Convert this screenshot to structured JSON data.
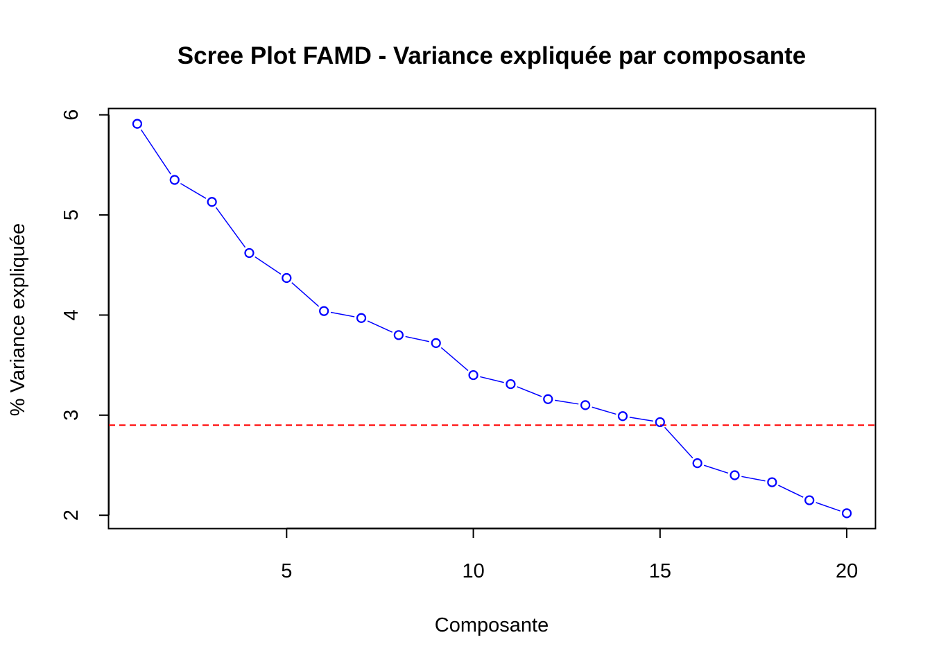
{
  "chart_data": {
    "type": "line",
    "title": "Scree Plot FAMD - Variance expliquée par composante",
    "xlabel": "Composante",
    "ylabel": "% Variance expliquée",
    "x": [
      1,
      2,
      3,
      4,
      5,
      6,
      7,
      8,
      9,
      10,
      11,
      12,
      13,
      14,
      15,
      16,
      17,
      18,
      19,
      20
    ],
    "series": [
      {
        "values": [
          5.91,
          5.35,
          5.13,
          4.62,
          4.37,
          4.04,
          3.97,
          3.8,
          3.72,
          3.4,
          3.31,
          3.16,
          3.1,
          2.99,
          2.93,
          2.52,
          2.4,
          2.33,
          2.15,
          2.02
        ],
        "color": "#0000FF",
        "marker": "open-circle",
        "line_style": "solid"
      }
    ],
    "reference_line": {
      "y": 2.9,
      "color": "#FF0000",
      "style": "dashed"
    },
    "xlim": [
      0.24,
      20.76
    ],
    "ylim": [
      1.87,
      6.06
    ],
    "x_ticks": [
      5,
      10,
      15,
      20
    ],
    "y_ticks": [
      2,
      3,
      4,
      5,
      6
    ],
    "x_tick_labels": [
      "5",
      "10",
      "15",
      "20"
    ],
    "y_tick_labels": [
      "2",
      "3",
      "4",
      "5",
      "6"
    ],
    "grid": false,
    "legend": "none",
    "box": true
  }
}
